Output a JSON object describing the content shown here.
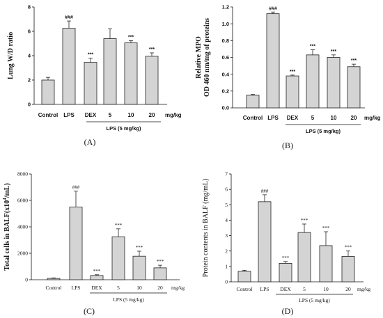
{
  "chart_data": [
    {
      "type": "bar",
      "panel_label": "(A)",
      "ylabel": "Lung W/D ratio",
      "ylim": [
        0,
        8
      ],
      "yticks": [
        0,
        2,
        4,
        6,
        8
      ],
      "categories": [
        "Control",
        "LPS",
        "DEX",
        "5",
        "10",
        "20"
      ],
      "unit": "mg/kg",
      "group_label": "LPS (5 mg/kg)",
      "values": [
        2.0,
        6.25,
        3.45,
        5.4,
        5.05,
        3.95
      ],
      "errors": [
        0.22,
        0.6,
        0.35,
        0.8,
        0.18,
        0.28
      ],
      "significance": [
        "",
        "###",
        "***",
        "",
        "***",
        "***"
      ]
    },
    {
      "type": "bar",
      "panel_label": "(B)",
      "ylabel": "Relative MPO",
      "ylabel2": "OD 460 nm/mg of proteins",
      "ylim": [
        0,
        1.2
      ],
      "yticks": [
        0.0,
        0.2,
        0.4,
        0.6,
        0.8,
        1.0,
        1.2
      ],
      "ytick_labels": [
        "0.0",
        "0.2",
        "0.4",
        "0.6",
        "0.8",
        "1.0",
        "1.2"
      ],
      "categories": [
        "Control",
        "LPS",
        "DEX",
        "5",
        "10",
        "20"
      ],
      "unit": "mg/kg",
      "group_label": "LPS (5 mg/kg)",
      "values": [
        0.15,
        1.12,
        0.38,
        0.63,
        0.6,
        0.49
      ],
      "errors": [
        0.01,
        0.02,
        0.01,
        0.06,
        0.03,
        0.03
      ],
      "significance": [
        "",
        "###",
        "***",
        "***",
        "***",
        "***"
      ]
    },
    {
      "type": "bar",
      "panel_label": "(C)",
      "ylabel": "Total  cells  in  BALF(x10",
      "ylabel_sup": "4",
      "ylabel_end": "/mL)",
      "ylim": [
        0,
        8000
      ],
      "yticks": [
        0,
        2000,
        4000,
        6000,
        8000
      ],
      "categories": [
        "Control",
        "LPS",
        "DEX",
        "5",
        "10",
        "20"
      ],
      "unit": "mg/kg",
      "group_label": "LPS (5 mg/kg)",
      "values": [
        100,
        5500,
        320,
        3250,
        1780,
        900
      ],
      "errors": [
        40,
        1200,
        60,
        600,
        380,
        200
      ],
      "significance": [
        "",
        "###",
        "***",
        "***",
        "***",
        "***"
      ]
    },
    {
      "type": "bar",
      "panel_label": "(D)",
      "ylabel": "Protein contents in BALF (mg/mL)",
      "ylim": [
        0,
        7
      ],
      "yticks": [
        0,
        1,
        2,
        3,
        4,
        5,
        6,
        7
      ],
      "categories": [
        "Control",
        "LPS",
        "DEX",
        "5",
        "10",
        "20"
      ],
      "unit": "mg/kg",
      "group_label": "LPS (5 mg/kg)",
      "values": [
        0.68,
        5.2,
        1.2,
        3.2,
        2.35,
        1.65
      ],
      "errors": [
        0.07,
        0.45,
        0.12,
        0.55,
        0.9,
        0.35
      ],
      "significance": [
        "",
        "###",
        "***",
        "***",
        "***",
        "***"
      ]
    }
  ]
}
